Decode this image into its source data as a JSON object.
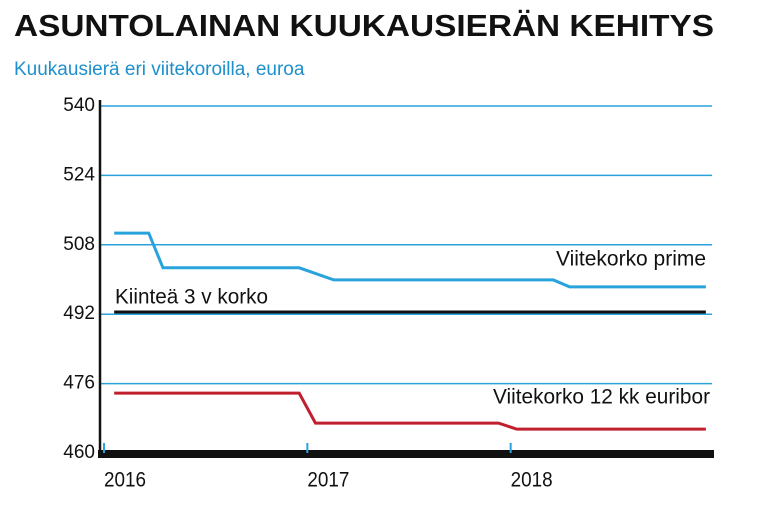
{
  "chart_data": {
    "type": "line",
    "title": "ASUNTOLAINAN KUUKAUSIERÄN KEHITYS",
    "subtitle": "Kuukausierä eri viitekoroilla, euroa",
    "xlim": [
      2016,
      2019
    ],
    "xticks": [
      2016,
      2017,
      2018
    ],
    "ylim": [
      460,
      540
    ],
    "yticks": [
      460,
      476,
      492,
      508,
      524,
      540
    ],
    "grid": true,
    "grid_color": "#29a3dc",
    "series": [
      {
        "name": "Viitekorko prime",
        "color": "#29a3dc",
        "x": [
          2016.05,
          2016.22,
          2016.29,
          2016.96,
          2017.13,
          2018.21,
          2018.29,
          2018.96
        ],
        "values": [
          510.7,
          510.7,
          502.7,
          502.7,
          499.9,
          499.9,
          498.3,
          498.3
        ]
      },
      {
        "name": "Kiinteä 3 v korko",
        "color": "#111111",
        "x": [
          2016.05,
          2018.96
        ],
        "values": [
          492.5,
          492.5
        ]
      },
      {
        "name": "Viitekorko 12 kk euribor",
        "color": "#c0202e",
        "x": [
          2016.05,
          2016.96,
          2017.04,
          2017.94,
          2018.03,
          2018.96
        ],
        "values": [
          473.8,
          473.8,
          466.9,
          466.9,
          465.5,
          465.5
        ]
      }
    ]
  }
}
